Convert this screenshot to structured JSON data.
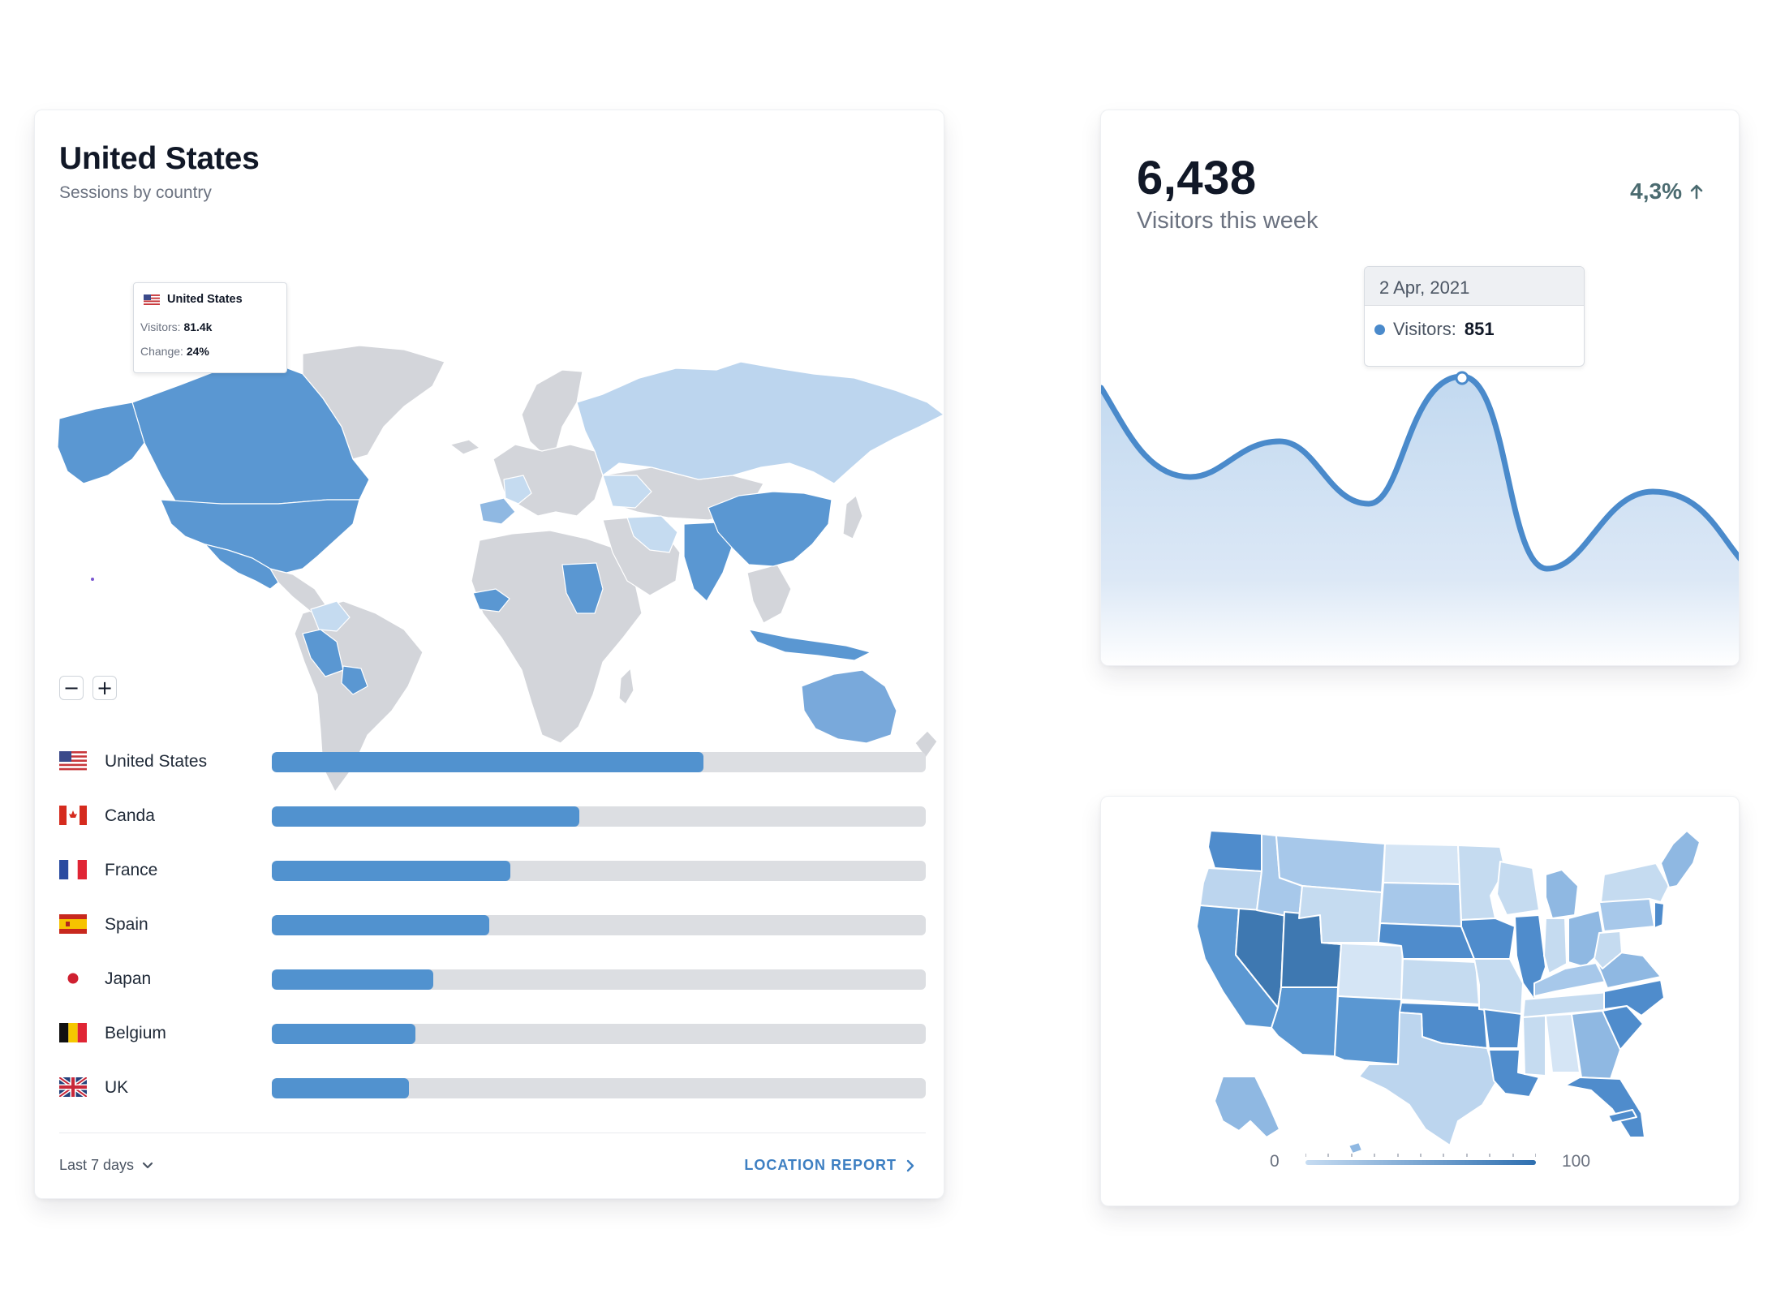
{
  "country_card": {
    "title": "United States",
    "subtitle": "Sessions by country",
    "map_tooltip": {
      "country": "United States",
      "visitors_label": "Visitors:",
      "visitors_value": "81.4k",
      "change_label": "Change:",
      "change_value": "24%"
    },
    "zoom_out_label": "−",
    "zoom_in_label": "+",
    "countries": [
      {
        "name": "United States",
        "flag": "us-flag-icon",
        "share": 0.66
      },
      {
        "name": "Canda",
        "flag": "canada-flag-icon",
        "share": 0.47
      },
      {
        "name": "France",
        "flag": "france-flag-icon",
        "share": 0.365
      },
      {
        "name": "Spain",
        "flag": "spain-flag-icon",
        "share": 0.333
      },
      {
        "name": "Japan",
        "flag": "japan-flag-icon",
        "share": 0.247
      },
      {
        "name": "Belgium",
        "flag": "belgium-flag-icon",
        "share": 0.22
      },
      {
        "name": "UK",
        "flag": "uk-flag-icon",
        "share": 0.21
      }
    ],
    "period": "Last 7 days",
    "report_link": "LOCATION REPORT"
  },
  "visitors_card": {
    "value": "6,438",
    "label": "Visitors this week",
    "change": "4,3%",
    "change_direction": "up",
    "tooltip": {
      "date": "2 Apr, 2021",
      "series_label": "Visitors:",
      "series_value": "851"
    }
  },
  "us_map_card": {
    "legend_min": "0",
    "legend_max": "100"
  },
  "colors": {
    "accent": "#5192cf",
    "accent_dark": "#3d7fc2",
    "bar_track": "#dcdee2",
    "land_grey": "#d3d5da",
    "choropleth_light": "#c5dbf0",
    "choropleth_mid": "#8fb8e2",
    "choropleth_strong": "#5192cf",
    "choropleth_dark": "#3f79b1"
  }
}
